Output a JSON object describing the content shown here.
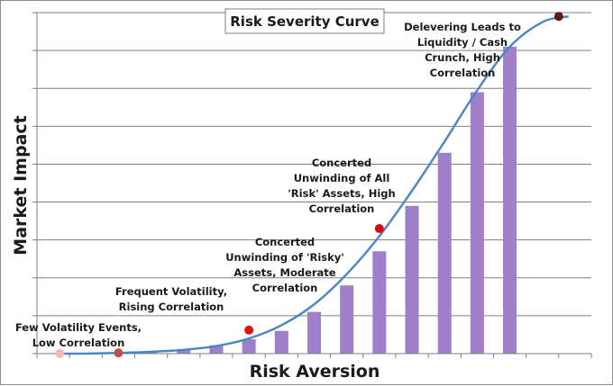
{
  "chart_data": {
    "type": "bar",
    "title": "Risk Severity Curve",
    "xlabel": "Risk Aversion",
    "ylabel": "Market Impact",
    "ylim": [
      0,
      9
    ],
    "grid": true,
    "bar_color": "#9f7fc9",
    "line_color": "#4a86c5",
    "bars": {
      "x": [
        1,
        2,
        3,
        4,
        5,
        6,
        7,
        8,
        9,
        10,
        11,
        12,
        13,
        14,
        15
      ],
      "values": [
        0.02,
        0.05,
        0.12,
        0.22,
        0.38,
        0.6,
        1.1,
        1.8,
        2.7,
        3.9,
        5.3,
        6.9,
        8.1,
        0,
        0
      ]
    },
    "curve": {
      "x": [
        -0.8,
        0,
        1,
        2,
        3,
        4,
        5,
        6,
        7,
        8,
        9,
        10,
        11,
        12,
        13,
        14,
        14.8
      ],
      "y": [
        0,
        0,
        0.02,
        0.05,
        0.1,
        0.2,
        0.4,
        0.75,
        1.3,
        2.1,
        3.1,
        4.3,
        5.6,
        6.95,
        8.1,
        8.75,
        8.9
      ]
    },
    "points": [
      {
        "x": -0.8,
        "y": 0,
        "color": "#f2b9b5"
      },
      {
        "x": 1.0,
        "y": 0.02,
        "color": "#c0504d"
      },
      {
        "x": 5.0,
        "y": 0.62,
        "color": "#e01010"
      },
      {
        "x": 9.0,
        "y": 3.3,
        "color": "#d01010"
      },
      {
        "x": 14.5,
        "y": 8.9,
        "color": "#5a1a1a"
      }
    ],
    "annotations": [
      {
        "lines": [
          "Few Volatility Events,",
          "Low Correlation"
        ]
      },
      {
        "lines": [
          "Frequent Volatility,",
          "Rising Correlation"
        ]
      },
      {
        "lines": [
          "Concerted",
          "Unwinding of 'Risky'",
          "Assets, Moderate",
          "Correlation"
        ]
      },
      {
        "lines": [
          "Concerted",
          "Unwinding of All",
          "'Risk' Assets, High",
          "Correlation"
        ]
      },
      {
        "lines": [
          "Delevering Leads to",
          "Liquidity / Cash",
          "Crunch, High",
          "Correlation"
        ]
      }
    ]
  }
}
